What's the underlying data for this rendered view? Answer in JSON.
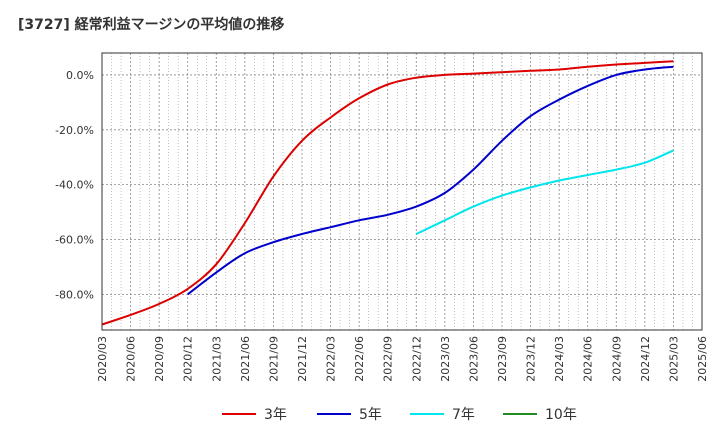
{
  "chart_data": {
    "type": "line",
    "title": "[3727]  経常利益マージンの平均値の推移",
    "xlabel": "",
    "ylabel": "",
    "ylim": [
      -93,
      8
    ],
    "grid": true,
    "legend_position": "bottom",
    "x_ticks": [
      "2020/03",
      "2020/06",
      "2020/09",
      "2020/12",
      "2021/03",
      "2021/06",
      "2021/09",
      "2021/12",
      "2022/03",
      "2022/06",
      "2022/09",
      "2022/12",
      "2023/03",
      "2023/06",
      "2023/09",
      "2023/12",
      "2024/03",
      "2024/06",
      "2024/09",
      "2024/12",
      "2025/03",
      "2025/06"
    ],
    "y_ticks": [
      {
        "value": 0,
        "label": "0.0%"
      },
      {
        "value": -20,
        "label": "-20.0%"
      },
      {
        "value": -40,
        "label": "-40.0%"
      },
      {
        "value": -60,
        "label": "-60.0%"
      },
      {
        "value": -80,
        "label": "-80.0%"
      }
    ],
    "series": [
      {
        "name": "3年",
        "color": "#dd0000",
        "points": [
          [
            "2020/03",
            -91.0
          ],
          [
            "2020/06",
            -87.5
          ],
          [
            "2020/09",
            -83.5
          ],
          [
            "2020/12",
            -78.0
          ],
          [
            "2021/03",
            -69.0
          ],
          [
            "2021/06",
            -54.0
          ],
          [
            "2021/09",
            -37.0
          ],
          [
            "2021/12",
            -24.0
          ],
          [
            "2022/03",
            -15.5
          ],
          [
            "2022/06",
            -8.5
          ],
          [
            "2022/09",
            -3.5
          ],
          [
            "2022/12",
            -1.0
          ],
          [
            "2023/03",
            0.0
          ],
          [
            "2023/06",
            0.5
          ],
          [
            "2023/09",
            1.0
          ],
          [
            "2023/12",
            1.5
          ],
          [
            "2024/03",
            2.0
          ],
          [
            "2024/06",
            3.0
          ],
          [
            "2024/09",
            3.8
          ],
          [
            "2024/12",
            4.4
          ],
          [
            "2025/03",
            5.0
          ]
        ]
      },
      {
        "name": "5年",
        "color": "#0000cc",
        "points": [
          [
            "2020/12",
            -80.0
          ],
          [
            "2021/03",
            -72.0
          ],
          [
            "2021/06",
            -65.0
          ],
          [
            "2021/09",
            -61.0
          ],
          [
            "2021/12",
            -58.0
          ],
          [
            "2022/03",
            -55.5
          ],
          [
            "2022/06",
            -53.0
          ],
          [
            "2022/09",
            -51.0
          ],
          [
            "2022/12",
            -48.0
          ],
          [
            "2023/03",
            -43.0
          ],
          [
            "2023/06",
            -34.5
          ],
          [
            "2023/09",
            -24.0
          ],
          [
            "2023/12",
            -15.0
          ],
          [
            "2024/03",
            -9.0
          ],
          [
            "2024/06",
            -4.0
          ],
          [
            "2024/09",
            0.0
          ],
          [
            "2024/12",
            2.0
          ],
          [
            "2025/03",
            3.0
          ]
        ]
      },
      {
        "name": "7年",
        "color": "#00e5ee",
        "points": [
          [
            "2022/12",
            -58.0
          ],
          [
            "2023/03",
            -53.0
          ],
          [
            "2023/06",
            -48.0
          ],
          [
            "2023/09",
            -44.0
          ],
          [
            "2023/12",
            -41.0
          ],
          [
            "2024/03",
            -38.5
          ],
          [
            "2024/06",
            -36.5
          ],
          [
            "2024/09",
            -34.5
          ],
          [
            "2024/12",
            -32.0
          ],
          [
            "2025/03",
            -27.5
          ]
        ]
      },
      {
        "name": "10年",
        "color": "#228b22",
        "points": []
      }
    ]
  }
}
